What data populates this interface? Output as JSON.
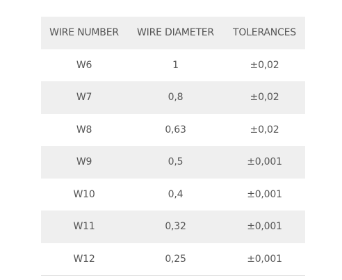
{
  "table": {
    "header": [
      "WIRE NUMBER",
      "WIRE DIAMETER",
      "TOLERANCES"
    ],
    "rows": [
      [
        "W6",
        "1",
        "±0,02"
      ],
      [
        "W7",
        "0,8",
        "±0,02"
      ],
      [
        "W8",
        "0,63",
        "±0,02"
      ],
      [
        "W9",
        "0,5",
        "±0,001"
      ],
      [
        "W10",
        "0,4",
        "±0,001"
      ],
      [
        "W11",
        "0,32",
        "±0,001"
      ],
      [
        "W12",
        "0,25",
        "±0,001"
      ]
    ]
  }
}
